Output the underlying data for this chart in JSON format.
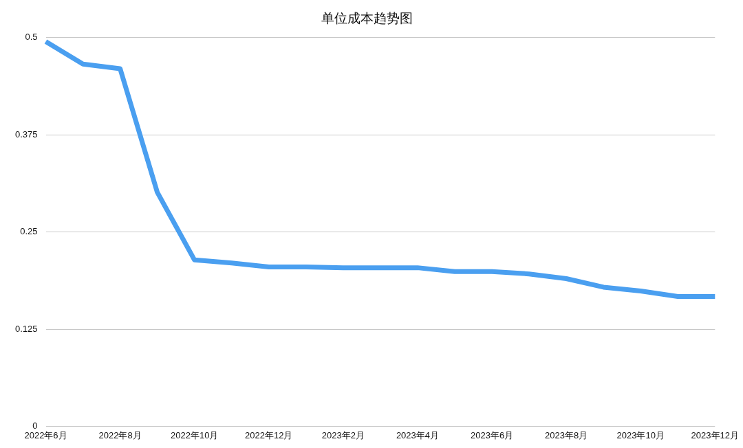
{
  "chart_data": {
    "type": "line",
    "title": "单位成本趋势图",
    "categories": [
      "2022年6月",
      null,
      "2022年8月",
      null,
      "2022年10月",
      null,
      "2022年12月",
      null,
      "2023年2月",
      null,
      "2023年4月",
      null,
      "2023年6月",
      null,
      "2023年8月",
      null,
      "2023年10月",
      null,
      "2023年12月"
    ],
    "series": [
      {
        "color": "#4a9ff0",
        "values": [
          0.495,
          0.466,
          0.46,
          0.301,
          0.214,
          0.21,
          0.205,
          0.205,
          0.204,
          0.204,
          0.204,
          0.199,
          0.199,
          0.196,
          0.19,
          0.179,
          0.174,
          0.167,
          0.167
        ]
      }
    ],
    "ylim": [
      0,
      0.5
    ],
    "yticks": [
      0,
      0.125,
      0.25,
      0.375,
      0.5
    ],
    "grid": "y",
    "legend": false,
    "marker": "none",
    "line_style": "solid"
  }
}
